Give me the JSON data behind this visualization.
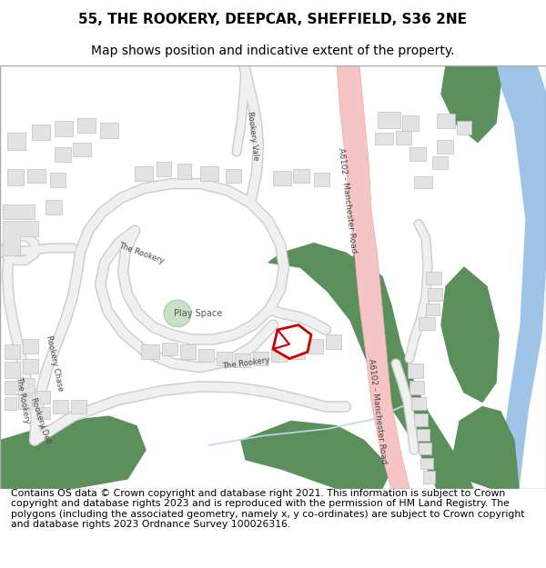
{
  "title_line1": "55, THE ROOKERY, DEEPCAR, SHEFFIELD, S36 2NE",
  "title_line2": "Map shows position and indicative extent of the property.",
  "footer_text": "Contains OS data © Crown copyright and database right 2021. This information is subject to Crown copyright and database rights 2023 and is reproduced with the permission of HM Land Registry. The polygons (including the associated geometry, namely x, y co-ordinates) are subject to Crown copyright and database rights 2023 Ordnance Survey 100026316.",
  "bg_color": "#ffffff",
  "map_bg": "#f8f8f8",
  "road_pink": "#f5c5c5",
  "road_pink_border": "#e8a8a8",
  "road_white": "#f0f0f0",
  "road_stroke": "#cccccc",
  "green_area": "#5b8f5b",
  "water_blue": "#a0c4e8",
  "building_fill": "#e2e2e2",
  "building_stroke": "#c0c0c0",
  "play_space_fill": "#c8e0c8",
  "play_space_stroke": "#a8c8a8",
  "property_outline": "#cc0000",
  "label_color": "#444444",
  "title_fontsize": 11,
  "subtitle_fontsize": 10,
  "footer_fontsize": 7.8
}
